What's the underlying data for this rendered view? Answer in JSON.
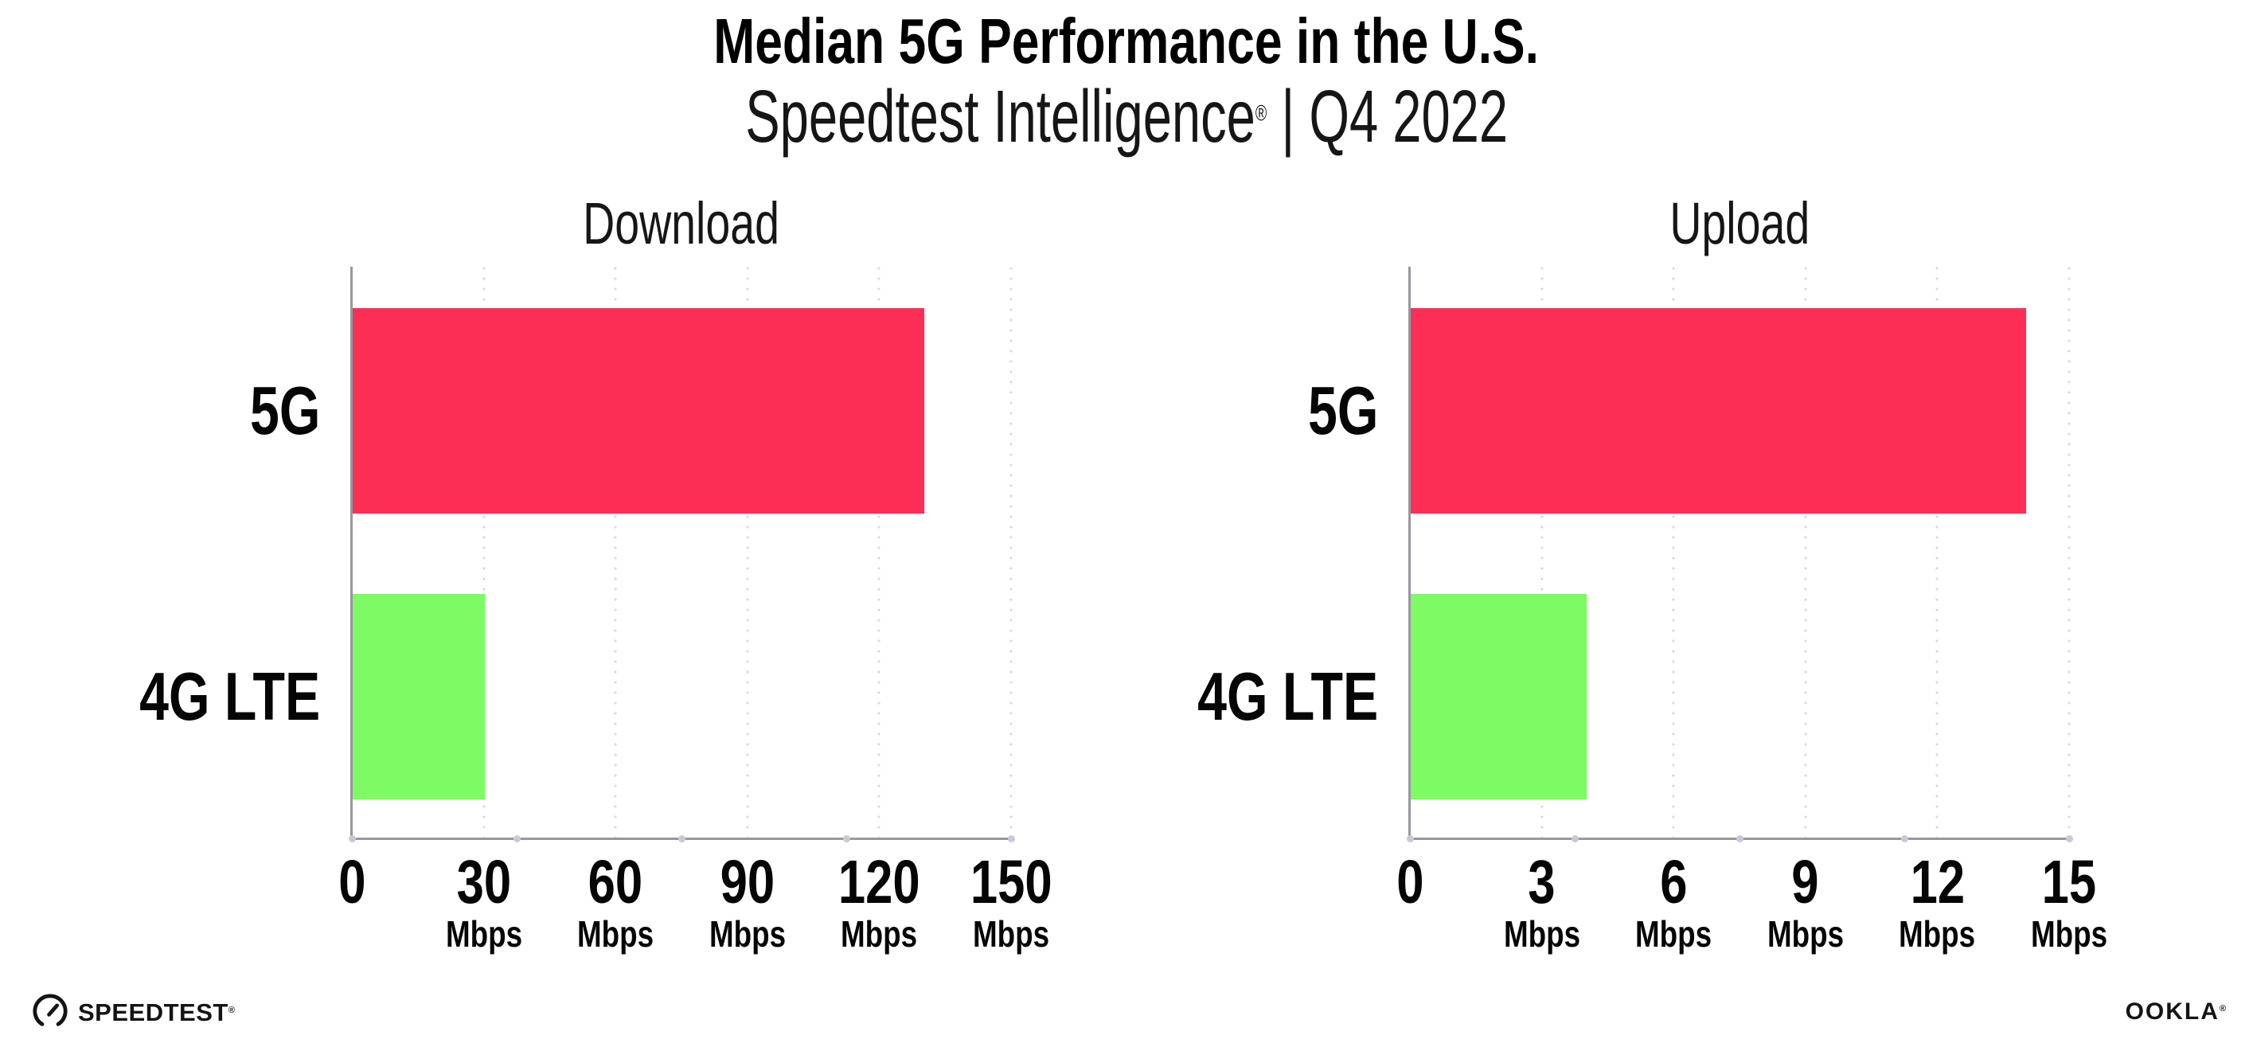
{
  "header": {
    "title": "Median 5G Performance in the U.S.",
    "subtitle_brand": "Speedtest Intelligence",
    "subtitle_reg": "®",
    "subtitle_rest": " | Q4 2022"
  },
  "footer": {
    "speedtest_label": "SPEEDTEST",
    "speedtest_reg": "®",
    "ookla_label": "OOKLA",
    "ookla_reg": "®"
  },
  "colors": {
    "bar_colors": {
      "5G": "#FD2E56",
      "4G LTE": "#7DFA64"
    },
    "axis": "#97979F",
    "axis_dot": "#C9C9D6",
    "grid_dot": "#D9D9E6",
    "text": "#050505"
  },
  "chart_data": [
    {
      "type": "bar",
      "orientation": "horizontal",
      "title": "Download",
      "categories": [
        "5G",
        "4G LTE"
      ],
      "values": [
        130,
        30
      ],
      "unit": "Mbps",
      "xlim": [
        0,
        150
      ],
      "xticks": [
        0,
        30,
        60,
        90,
        120,
        150
      ],
      "grid": true,
      "legend": "none"
    },
    {
      "type": "bar",
      "orientation": "horizontal",
      "title": "Upload",
      "categories": [
        "5G",
        "4G LTE"
      ],
      "values": [
        14,
        4
      ],
      "unit": "Mbps",
      "xlim": [
        0,
        15
      ],
      "xticks": [
        0,
        3,
        6,
        9,
        12,
        15
      ],
      "grid": true,
      "legend": "none"
    }
  ]
}
